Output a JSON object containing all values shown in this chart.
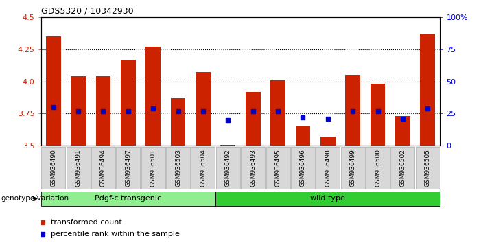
{
  "title": "GDS5320 / 10342930",
  "samples": [
    "GSM936490",
    "GSM936491",
    "GSM936494",
    "GSM936497",
    "GSM936501",
    "GSM936503",
    "GSM936504",
    "GSM936492",
    "GSM936493",
    "GSM936495",
    "GSM936496",
    "GSM936498",
    "GSM936499",
    "GSM936500",
    "GSM936502",
    "GSM936505"
  ],
  "transformed_count": [
    4.35,
    4.04,
    4.04,
    4.17,
    4.27,
    3.87,
    4.07,
    3.51,
    3.92,
    4.01,
    3.65,
    3.57,
    4.05,
    3.98,
    3.73,
    4.37
  ],
  "percentile_rank": [
    30,
    27,
    27,
    27,
    29,
    27,
    27,
    20,
    27,
    27,
    22,
    21,
    27,
    27,
    21,
    29
  ],
  "groups": [
    {
      "label": "Pdgf-c transgenic",
      "start": 0,
      "end": 7,
      "color": "#90ee90"
    },
    {
      "label": "wild type",
      "start": 7,
      "end": 16,
      "color": "#32cd32"
    }
  ],
  "ylim_left": [
    3.5,
    4.5
  ],
  "ylim_right": [
    0,
    100
  ],
  "yticks_left": [
    3.5,
    3.75,
    4.0,
    4.25,
    4.5
  ],
  "yticks_right": [
    0,
    25,
    50,
    75,
    100
  ],
  "ytick_labels_right": [
    "0",
    "25",
    "50",
    "75",
    "100%"
  ],
  "bar_color": "#cc2200",
  "dot_color": "#0000cc",
  "bar_bottom": 3.5,
  "bar_width": 0.6,
  "legend_items": [
    {
      "label": "transformed count",
      "color": "#cc2200"
    },
    {
      "label": "percentile rank within the sample",
      "color": "#0000cc"
    }
  ],
  "genotype_label": "genotype/variation",
  "tick_label_color_left": "#cc2200",
  "tick_label_color_right": "#0000cc",
  "gridlines": [
    3.75,
    4.0,
    4.25
  ]
}
